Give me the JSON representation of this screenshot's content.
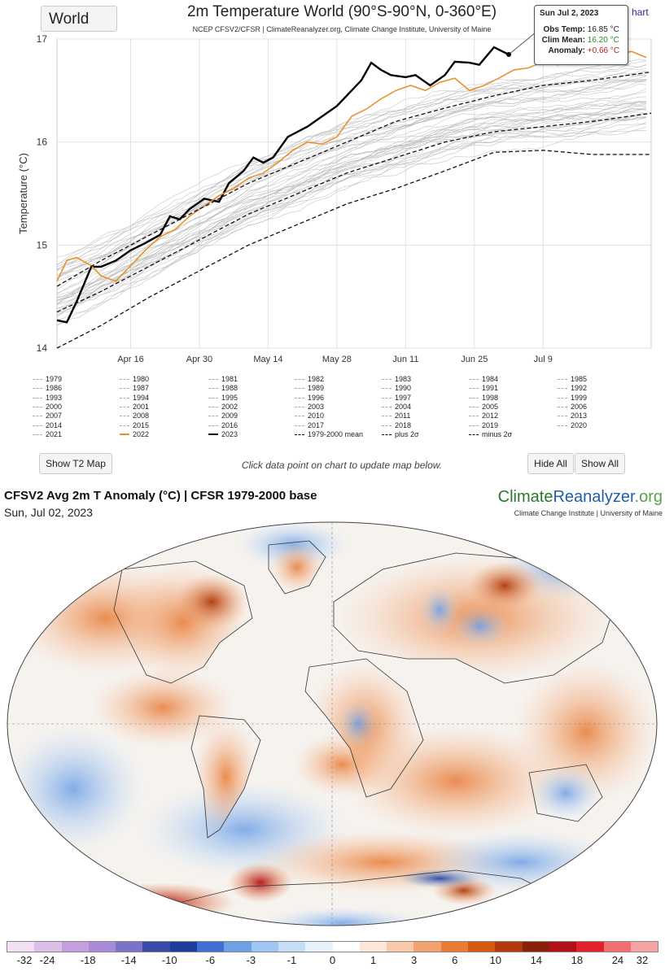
{
  "header": {
    "region_select": "World",
    "title": "2m Temperature World (90°S-90°N, 0-360°E)",
    "subtitle": "NCEP CFSV2/CFSR | ClimateReanalyzer.org, Climate Change Institute, University of Maine",
    "menu_link": "hart"
  },
  "tooltip": {
    "date": "Sun Jul 2, 2023",
    "obs_label": "Obs Temp:",
    "obs_value": "16.85 °C",
    "clim_label": "Clim Mean:",
    "clim_value": "16.20 °C",
    "anom_label": "Anomaly:",
    "anom_value": "+0.66 °C"
  },
  "colors": {
    "y2023": "#000000",
    "y2022": "#e6932b",
    "other_years": "#b5b5b5",
    "grid": "#e0e0e0",
    "obs_green": "#2e8b2e",
    "anom_red": "#b22222"
  },
  "chart_data": {
    "type": "line",
    "ylabel": "Temperature (°C)",
    "ylim": [
      14,
      17
    ],
    "xlim_day_of_year": [
      91,
      212
    ],
    "x_ticks": [
      {
        "label": "Apr 16",
        "doy": 106
      },
      {
        "label": "Apr 30",
        "doy": 120
      },
      {
        "label": "May 14",
        "doy": 134
      },
      {
        "label": "May 28",
        "doy": 148
      },
      {
        "label": "Jun 11",
        "doy": 162
      },
      {
        "label": "Jun 25",
        "doy": 176
      },
      {
        "label": "Jul 9",
        "doy": 190
      }
    ],
    "y_ticks": [
      14,
      15,
      16,
      17
    ],
    "series": [
      {
        "name": "2023",
        "style": "solid-bold",
        "points": [
          [
            91,
            14.27
          ],
          [
            93,
            14.25
          ],
          [
            95,
            14.45
          ],
          [
            98,
            14.79
          ],
          [
            100,
            14.79
          ],
          [
            103,
            14.85
          ],
          [
            106,
            14.95
          ],
          [
            109,
            15.02
          ],
          [
            112,
            15.1
          ],
          [
            114,
            15.28
          ],
          [
            116,
            15.25
          ],
          [
            118,
            15.35
          ],
          [
            121,
            15.45
          ],
          [
            124,
            15.42
          ],
          [
            126,
            15.6
          ],
          [
            129,
            15.72
          ],
          [
            131,
            15.85
          ],
          [
            133,
            15.8
          ],
          [
            135,
            15.85
          ],
          [
            138,
            16.05
          ],
          [
            140,
            16.1
          ],
          [
            142,
            16.15
          ],
          [
            145,
            16.25
          ],
          [
            148,
            16.35
          ],
          [
            151,
            16.5
          ],
          [
            153,
            16.6
          ],
          [
            155,
            16.77
          ],
          [
            157,
            16.7
          ],
          [
            159,
            16.65
          ],
          [
            162,
            16.63
          ],
          [
            164,
            16.65
          ],
          [
            167,
            16.55
          ],
          [
            170,
            16.65
          ],
          [
            172,
            16.78
          ],
          [
            175,
            16.77
          ],
          [
            177,
            16.75
          ],
          [
            180,
            16.92
          ],
          [
            183,
            16.85
          ]
        ]
      },
      {
        "name": "2022",
        "style": "solid-orange",
        "points": [
          [
            91,
            14.65
          ],
          [
            93,
            14.85
          ],
          [
            95,
            14.88
          ],
          [
            98,
            14.8
          ],
          [
            100,
            14.7
          ],
          [
            103,
            14.65
          ],
          [
            106,
            14.8
          ],
          [
            109,
            14.95
          ],
          [
            112,
            15.08
          ],
          [
            115,
            15.15
          ],
          [
            118,
            15.28
          ],
          [
            121,
            15.38
          ],
          [
            124,
            15.48
          ],
          [
            127,
            15.55
          ],
          [
            130,
            15.65
          ],
          [
            133,
            15.7
          ],
          [
            136,
            15.8
          ],
          [
            139,
            15.92
          ],
          [
            142,
            16.0
          ],
          [
            145,
            15.98
          ],
          [
            148,
            16.05
          ],
          [
            151,
            16.25
          ],
          [
            154,
            16.32
          ],
          [
            157,
            16.42
          ],
          [
            160,
            16.5
          ],
          [
            163,
            16.55
          ],
          [
            166,
            16.5
          ],
          [
            169,
            16.58
          ],
          [
            172,
            16.62
          ],
          [
            175,
            16.5
          ],
          [
            178,
            16.55
          ],
          [
            181,
            16.62
          ],
          [
            184,
            16.7
          ],
          [
            187,
            16.72
          ],
          [
            190,
            16.78
          ],
          [
            193,
            16.75
          ],
          [
            196,
            16.8
          ],
          [
            199,
            16.78
          ],
          [
            202,
            16.82
          ],
          [
            205,
            16.85
          ],
          [
            208,
            16.88
          ],
          [
            211,
            16.82
          ]
        ]
      },
      {
        "name": "1979-2000 mean",
        "style": "dashed",
        "points": [
          [
            91,
            14.35
          ],
          [
            100,
            14.55
          ],
          [
            110,
            14.8
          ],
          [
            120,
            15.05
          ],
          [
            130,
            15.3
          ],
          [
            140,
            15.5
          ],
          [
            150,
            15.7
          ],
          [
            160,
            15.85
          ],
          [
            170,
            16.0
          ],
          [
            180,
            16.1
          ],
          [
            190,
            16.15
          ],
          [
            200,
            16.2
          ],
          [
            212,
            16.28
          ]
        ]
      },
      {
        "name": "plus 2σ",
        "style": "dashed",
        "points": [
          [
            91,
            14.6
          ],
          [
            100,
            14.85
          ],
          [
            110,
            15.1
          ],
          [
            120,
            15.35
          ],
          [
            130,
            15.6
          ],
          [
            140,
            15.8
          ],
          [
            150,
            16.0
          ],
          [
            160,
            16.2
          ],
          [
            170,
            16.33
          ],
          [
            180,
            16.45
          ],
          [
            190,
            16.55
          ],
          [
            200,
            16.6
          ],
          [
            212,
            16.68
          ]
        ]
      },
      {
        "name": "minus 2σ",
        "style": "dashed",
        "points": [
          [
            91,
            14.0
          ],
          [
            100,
            14.22
          ],
          [
            110,
            14.5
          ],
          [
            120,
            14.75
          ],
          [
            130,
            15.0
          ],
          [
            140,
            15.2
          ],
          [
            150,
            15.4
          ],
          [
            160,
            15.55
          ],
          [
            170,
            15.72
          ],
          [
            180,
            15.9
          ],
          [
            190,
            15.92
          ],
          [
            200,
            15.88
          ],
          [
            212,
            15.88
          ]
        ]
      }
    ],
    "legend": [
      "1979",
      "1980",
      "1981",
      "1982",
      "1983",
      "1984",
      "1985",
      "1986",
      "1987",
      "1988",
      "1989",
      "1990",
      "1991",
      "1992",
      "1993",
      "1994",
      "1995",
      "1996",
      "1997",
      "1998",
      "1999",
      "2000",
      "2001",
      "2002",
      "2003",
      "2004",
      "2005",
      "2006",
      "2007",
      "2008",
      "2009",
      "2010",
      "2011",
      "2012",
      "2013",
      "2014",
      "2015",
      "2016",
      "2017",
      "2018",
      "2019",
      "2020",
      "2021",
      "2022",
      "2023",
      "1979-2000 mean",
      "plus 2σ",
      "minus 2σ"
    ]
  },
  "buttons": {
    "show_map": "Show T2 Map",
    "hide_all": "Hide All",
    "show_all": "Show All"
  },
  "hint": "Click data point on chart to update map below.",
  "map": {
    "title": "CFSV2 Avg 2m T Anomaly (°C) | CFSR 1979-2000 base",
    "date": "Sun, Jul 02, 2023",
    "logo_a": "Climate",
    "logo_b": "Reanalyzer",
    "logo_c": ".org",
    "logo_sub": "Climate Change Institute | University of Maine"
  },
  "colorbar": {
    "labels": [
      "-32",
      "-24",
      "-18",
      "-14",
      "-10",
      "-6",
      "-3",
      "-1",
      "0",
      "1",
      "3",
      "6",
      "10",
      "14",
      "18",
      "24",
      "32"
    ],
    "colors": [
      "#f3dff3",
      "#dcbfe8",
      "#c59ee0",
      "#a98ad8",
      "#7b72c9",
      "#3a4aa8",
      "#1e3c9a",
      "#3f6fd0",
      "#6ea0e6",
      "#9ec6f2",
      "#c6dff8",
      "#e6f1fb",
      "#ffffff",
      "#fde6d8",
      "#f9c8a8",
      "#f3a26e",
      "#e87b35",
      "#d55a12",
      "#b03a0c",
      "#8a1f0a",
      "#b01218",
      "#e0222a",
      "#f07070",
      "#f5a3a3"
    ]
  }
}
